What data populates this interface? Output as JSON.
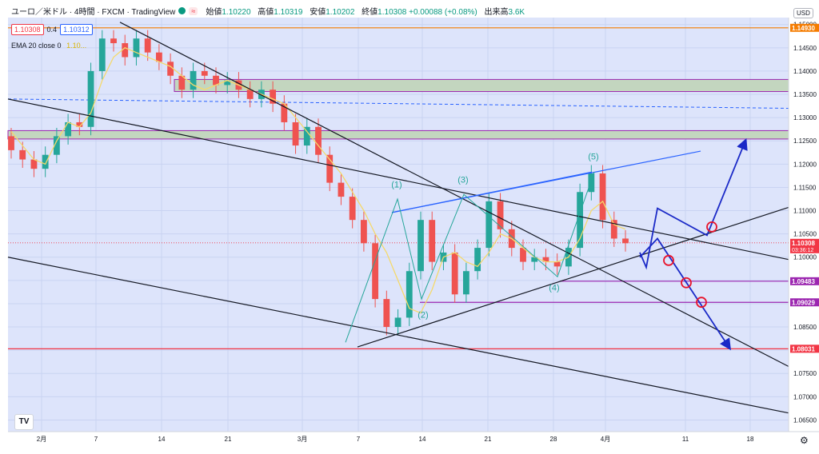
{
  "header": {
    "symbol": "ユーロ／米ドル · 4時間 · FXCM · TradingView",
    "wave_icon": "≈",
    "ohlc": [
      {
        "label": "始値",
        "value": "1.10220"
      },
      {
        "label": "高値",
        "value": "1.10319"
      },
      {
        "label": "安値",
        "value": "1.10202"
      },
      {
        "label": "終値",
        "value": "1.10308"
      },
      {
        "label": "",
        "value": "+0.00088 (+0.08%)"
      },
      {
        "label": "出来高",
        "value": "3.6K"
      }
    ],
    "sell_price": "1.10308",
    "spread": "0.4",
    "buy_price": "1.10312",
    "indicator": "EMA 20 close 0",
    "indicator_value": "1.10..."
  },
  "axis_controls": {
    "currency": "USD",
    "settings_icon": "gear-icon",
    "logo": "TV"
  },
  "chart_data": {
    "type": "candlestick",
    "title": "ユーロ／米ドル · 4時間 · FXCM",
    "ylim": [
      1.0625,
      1.1515
    ],
    "y_ticks": [
      "1.15000",
      "1.14500",
      "1.14000",
      "1.13500",
      "1.13000",
      "1.12500",
      "1.12000",
      "1.11500",
      "1.11000",
      "1.10500",
      "1.10000",
      "1.09500",
      "1.09000",
      "1.08500",
      "1.08000",
      "1.07500",
      "1.07000",
      "1.06500"
    ],
    "x_ticks": [
      "2月",
      "7",
      "14",
      "21",
      "3月",
      "7",
      "14",
      "21",
      "28",
      "4月",
      "11",
      "18"
    ],
    "price_labels": [
      {
        "value": "1.14930",
        "color": "#f57c00"
      },
      {
        "value": "1.10308",
        "color": "#f23645",
        "sub": "03:36:12"
      },
      {
        "value": "1.09483",
        "color": "#9c27b0"
      },
      {
        "value": "1.09029",
        "color": "#9c27b0"
      },
      {
        "value": "1.08031",
        "color": "#f23645"
      }
    ],
    "wave_labels": [
      "(1)",
      "(2)",
      "(3)",
      "(4)",
      "(5)"
    ],
    "series": [
      {
        "name": "EMA 20 close 0",
        "color": "#f5d96b",
        "values": [
          1.127,
          1.124,
          1.121,
          1.12,
          1.125,
          1.129,
          1.128,
          1.131,
          1.138,
          1.143,
          1.145,
          1.144,
          1.143,
          1.142,
          1.141,
          1.139,
          1.137,
          1.136,
          1.137,
          1.138,
          1.137,
          1.136,
          1.135,
          1.134,
          1.133,
          1.13,
          1.127,
          1.124,
          1.121,
          1.118,
          1.114,
          1.11,
          1.105,
          1.101,
          1.095,
          1.089,
          1.088,
          1.093,
          1.1,
          1.101,
          1.099,
          1.098,
          1.101,
          1.105,
          1.104,
          1.102,
          1.1,
          1.099,
          1.099,
          1.1,
          1.104,
          1.11,
          1.112,
          1.107,
          1.106
        ]
      }
    ],
    "candles": [
      [
        1.126,
        1.123
      ],
      [
        1.123,
        1.121
      ],
      [
        1.121,
        1.119
      ],
      [
        1.119,
        1.122
      ],
      [
        1.122,
        1.126
      ],
      [
        1.126,
        1.129
      ],
      [
        1.129,
        1.128
      ],
      [
        1.128,
        1.14
      ],
      [
        1.14,
        1.147
      ],
      [
        1.147,
        1.146
      ],
      [
        1.146,
        1.143
      ],
      [
        1.143,
        1.147
      ],
      [
        1.147,
        1.144
      ],
      [
        1.144,
        1.142
      ],
      [
        1.142,
        1.139
      ],
      [
        1.139,
        1.136
      ],
      [
        1.136,
        1.14
      ],
      [
        1.14,
        1.139
      ],
      [
        1.139,
        1.137
      ],
      [
        1.137,
        1.138
      ],
      [
        1.138,
        1.136
      ],
      [
        1.136,
        1.134
      ],
      [
        1.134,
        1.136
      ],
      [
        1.136,
        1.133
      ],
      [
        1.133,
        1.129
      ],
      [
        1.129,
        1.124
      ],
      [
        1.124,
        1.128
      ],
      [
        1.128,
        1.122
      ],
      [
        1.122,
        1.116
      ],
      [
        1.116,
        1.113
      ],
      [
        1.113,
        1.108
      ],
      [
        1.108,
        1.103
      ],
      [
        1.103,
        1.091
      ],
      [
        1.091,
        1.085
      ],
      [
        1.085,
        1.087
      ],
      [
        1.087,
        1.097
      ],
      [
        1.097,
        1.108
      ],
      [
        1.108,
        1.099
      ],
      [
        1.099,
        1.101
      ],
      [
        1.101,
        1.092
      ],
      [
        1.092,
        1.097
      ],
      [
        1.097,
        1.102
      ],
      [
        1.102,
        1.112
      ],
      [
        1.112,
        1.106
      ],
      [
        1.106,
        1.102
      ],
      [
        1.102,
        1.099
      ],
      [
        1.099,
        1.1
      ],
      [
        1.1,
        1.099
      ],
      [
        1.099,
        1.098
      ],
      [
        1.098,
        1.102
      ],
      [
        1.102,
        1.114
      ],
      [
        1.114,
        1.118
      ],
      [
        1.118,
        1.108
      ],
      [
        1.108,
        1.104
      ],
      [
        1.104,
        1.103
      ]
    ],
    "colors": {
      "up": "#26a69a",
      "down": "#ef5350",
      "plot_bg": "#dde4fb",
      "zone": "#c3d6bf",
      "zone_border": "#9c27b0",
      "trend": "#131722",
      "channel": "#2962ff",
      "forecast": "#1a29c7",
      "circle": "#e8132b"
    }
  }
}
